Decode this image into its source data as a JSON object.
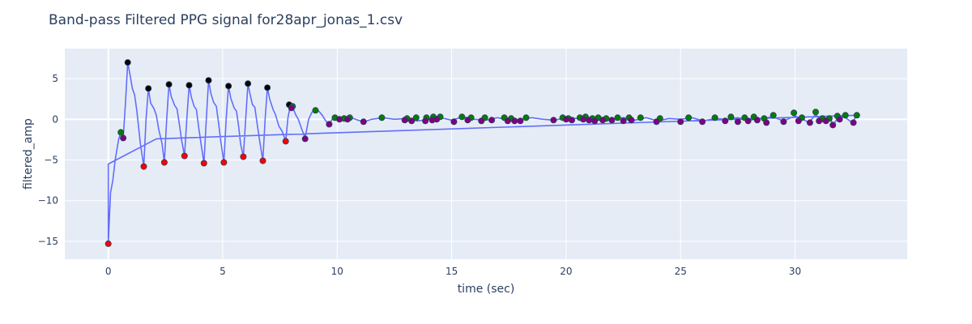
{
  "chart_data": {
    "type": "scatter",
    "title": "Band-pass Filtered PPG signal for28apr_jonas_1.csv",
    "xlabel": "time (sec)",
    "ylabel": "filtered_amp",
    "xlim": [
      -1.9,
      34.9
    ],
    "ylim": [
      -17.2,
      8.7
    ],
    "x_ticks": [
      0,
      5,
      10,
      15,
      20,
      25,
      30
    ],
    "y_ticks": [
      -15,
      -10,
      -5,
      0,
      5
    ],
    "grid": true,
    "colors": {
      "plot_bg": "#e5ecf6",
      "grid": "#ffffff",
      "line": "#636efa",
      "peaks_major": "#000000",
      "troughs_major": "#ff0000",
      "peaks_minor": "#008000",
      "troughs_minor": "#800080",
      "marker_edge": "#2a3f5f"
    },
    "series": [
      {
        "kind": "line",
        "points": [
          [
            0,
            -15.3
          ],
          [
            0.05,
            -12
          ],
          [
            0.1,
            -9
          ],
          [
            0.2,
            -7.5
          ],
          [
            0.3,
            -5
          ],
          [
            0.45,
            -2.5
          ],
          [
            0.55,
            -1.6
          ],
          [
            0.65,
            -2.3
          ],
          [
            0.75,
            2
          ],
          [
            0.85,
            7
          ],
          [
            0.95,
            5.5
          ],
          [
            1.05,
            3.8
          ],
          [
            1.15,
            3
          ],
          [
            1.25,
            1
          ],
          [
            1.4,
            -3
          ],
          [
            1.55,
            -5.8
          ],
          [
            1.65,
            0
          ],
          [
            1.75,
            3.8
          ],
          [
            1.85,
            2
          ],
          [
            2.0,
            1.3
          ],
          [
            2.1,
            0.5
          ],
          [
            2.2,
            -1.2
          ],
          [
            2.35,
            -3
          ],
          [
            2.45,
            -5.3
          ],
          [
            2.55,
            0
          ],
          [
            2.65,
            4.3
          ],
          [
            2.75,
            2.8
          ],
          [
            2.9,
            1.7
          ],
          [
            3.0,
            1.3
          ],
          [
            3.1,
            -0.5
          ],
          [
            3.2,
            -2.5
          ],
          [
            3.33,
            -4.5
          ],
          [
            3.43,
            0
          ],
          [
            3.53,
            4.2
          ],
          [
            3.63,
            2.7
          ],
          [
            3.75,
            1.6
          ],
          [
            3.85,
            1.2
          ],
          [
            3.95,
            -1
          ],
          [
            4.05,
            -3
          ],
          [
            4.18,
            -5.4
          ],
          [
            4.28,
            0
          ],
          [
            4.38,
            4.8
          ],
          [
            4.48,
            3.2
          ],
          [
            4.6,
            2.1
          ],
          [
            4.72,
            1.6
          ],
          [
            4.82,
            -0.5
          ],
          [
            4.92,
            -2.8
          ],
          [
            5.05,
            -5.3
          ],
          [
            5.15,
            0
          ],
          [
            5.25,
            4.1
          ],
          [
            5.35,
            2.6
          ],
          [
            5.5,
            1.4
          ],
          [
            5.6,
            1
          ],
          [
            5.7,
            -1
          ],
          [
            5.78,
            -3
          ],
          [
            5.9,
            -4.6
          ],
          [
            6.0,
            0
          ],
          [
            6.1,
            4.4
          ],
          [
            6.2,
            3
          ],
          [
            6.3,
            1.8
          ],
          [
            6.4,
            1.5
          ],
          [
            6.5,
            -0.5
          ],
          [
            6.62,
            -2.8
          ],
          [
            6.75,
            -5.1
          ],
          [
            6.85,
            0
          ],
          [
            6.95,
            3.9
          ],
          [
            7.05,
            2.5
          ],
          [
            7.2,
            1.2
          ],
          [
            7.3,
            0.6
          ],
          [
            7.45,
            -0.8
          ],
          [
            7.6,
            -1.5
          ],
          [
            7.75,
            -2.7
          ],
          [
            7.85,
            0.2
          ],
          [
            7.95,
            1.7
          ],
          [
            8.05,
            1.5
          ],
          [
            8.2,
            0.5
          ],
          [
            8.3,
            0
          ],
          [
            8.45,
            -1.2
          ],
          [
            8.6,
            -2.3
          ],
          [
            8.75,
            0
          ],
          [
            8.9,
            0.9
          ],
          [
            9.05,
            1.1
          ],
          [
            9.2,
            1
          ],
          [
            9.35,
            0.5
          ],
          [
            9.5,
            -0.2
          ],
          [
            9.65,
            -0.6
          ],
          [
            9.8,
            0.1
          ],
          [
            10.0,
            0.2
          ],
          [
            10.3,
            0.1
          ],
          [
            10.6,
            0.2
          ],
          [
            10.9,
            -0.1
          ],
          [
            11.2,
            -0.3
          ],
          [
            11.5,
            0
          ],
          [
            12.0,
            0.2
          ],
          [
            12.5,
            0
          ],
          [
            13.0,
            0.1
          ],
          [
            13.5,
            -0.2
          ],
          [
            14.0,
            0
          ],
          [
            14.5,
            0.2
          ],
          [
            15.0,
            -0.1
          ],
          [
            15.5,
            0.3
          ],
          [
            16.0,
            0
          ],
          [
            16.5,
            -0.1
          ],
          [
            17.0,
            0.2
          ],
          [
            17.5,
            -0.1
          ],
          [
            18.0,
            0
          ],
          [
            18.5,
            0.2
          ],
          [
            19.0,
            0
          ],
          [
            19.5,
            -0.1
          ],
          [
            20.0,
            0.2
          ],
          [
            20.5,
            0.1
          ],
          [
            21.0,
            -0.2
          ],
          [
            21.5,
            0.1
          ],
          [
            22.0,
            0
          ],
          [
            22.5,
            0.2
          ],
          [
            23.0,
            -0.1
          ],
          [
            23.5,
            0.2
          ],
          [
            24.0,
            -0.2
          ],
          [
            24.5,
            0.1
          ],
          [
            25.0,
            0
          ],
          [
            25.5,
            0.2
          ],
          [
            26.0,
            -0.2
          ],
          [
            26.5,
            0.1
          ],
          [
            27.0,
            0
          ],
          [
            27.5,
            0.2
          ],
          [
            28.0,
            -0.1
          ],
          [
            28.5,
            0.1
          ],
          [
            29.0,
            0.3
          ],
          [
            29.5,
            -0.2
          ],
          [
            30.0,
            0.4
          ],
          [
            30.3,
            0.1
          ],
          [
            30.6,
            -0.4
          ],
          [
            30.9,
            0.6
          ],
          [
            31.2,
            -0.3
          ],
          [
            31.5,
            0
          ],
          [
            31.7,
            -0.6
          ],
          [
            31.9,
            0.4
          ],
          [
            32.2,
            0.2
          ],
          [
            32.5,
            -0.4
          ],
          [
            32.7,
            0.5
          ],
          [
            32.7,
            0.5
          ],
          [
            2.1,
            -2.4
          ],
          [
            0,
            -5.5
          ],
          [
            0,
            -15.3
          ]
        ]
      },
      {
        "kind": "markers",
        "name_hint": "peaks_major",
        "color_key": "peaks_major",
        "points": [
          [
            0.85,
            7
          ],
          [
            1.75,
            3.8
          ],
          [
            2.65,
            4.3
          ],
          [
            3.53,
            4.2
          ],
          [
            4.38,
            4.8
          ],
          [
            5.25,
            4.1
          ],
          [
            6.1,
            4.4
          ],
          [
            6.95,
            3.9
          ],
          [
            7.9,
            1.8
          ]
        ]
      },
      {
        "kind": "markers",
        "name_hint": "troughs_major",
        "color_key": "troughs_major",
        "points": [
          [
            0,
            -15.3
          ],
          [
            1.55,
            -5.8
          ],
          [
            2.45,
            -5.3
          ],
          [
            3.33,
            -4.5
          ],
          [
            4.18,
            -5.4
          ],
          [
            5.05,
            -5.3
          ],
          [
            5.9,
            -4.6
          ],
          [
            6.75,
            -5.1
          ],
          [
            7.75,
            -2.7
          ]
        ]
      },
      {
        "kind": "markers",
        "name_hint": "peaks_minor",
        "color_key": "peaks_minor",
        "points": [
          [
            0.55,
            -1.6
          ],
          [
            8.05,
            1.6
          ],
          [
            9.05,
            1.1
          ],
          [
            9.9,
            0.2
          ],
          [
            10.3,
            0.1
          ],
          [
            10.55,
            0.2
          ],
          [
            11.95,
            0.2
          ],
          [
            13.05,
            0.1
          ],
          [
            13.45,
            0.2
          ],
          [
            13.9,
            0.2
          ],
          [
            14.2,
            0.3
          ],
          [
            14.5,
            0.3
          ],
          [
            15.45,
            0.3
          ],
          [
            15.85,
            0.2
          ],
          [
            16.45,
            0.2
          ],
          [
            17.3,
            0.2
          ],
          [
            17.6,
            0.1
          ],
          [
            18.25,
            0.2
          ],
          [
            19.85,
            0.2
          ],
          [
            20.1,
            0.1
          ],
          [
            20.6,
            0.2
          ],
          [
            20.85,
            0.3
          ],
          [
            21.15,
            0.1
          ],
          [
            21.4,
            0.2
          ],
          [
            21.75,
            0.1
          ],
          [
            22.25,
            0.2
          ],
          [
            22.75,
            0.2
          ],
          [
            23.25,
            0.2
          ],
          [
            24.1,
            0.1
          ],
          [
            25.35,
            0.2
          ],
          [
            26.5,
            0.2
          ],
          [
            27.2,
            0.3
          ],
          [
            27.8,
            0.2
          ],
          [
            28.2,
            0.3
          ],
          [
            28.65,
            0.1
          ],
          [
            29.05,
            0.5
          ],
          [
            29.95,
            0.8
          ],
          [
            30.3,
            0.2
          ],
          [
            30.9,
            0.9
          ],
          [
            31.2,
            0.1
          ],
          [
            31.5,
            0.1
          ],
          [
            31.85,
            0.4
          ],
          [
            32.2,
            0.5
          ],
          [
            32.7,
            0.5
          ]
        ]
      },
      {
        "kind": "markers",
        "name_hint": "troughs_minor",
        "color_key": "troughs_minor",
        "points": [
          [
            0.65,
            -2.3
          ],
          [
            8.0,
            1.4
          ],
          [
            8.6,
            -2.4
          ],
          [
            9.65,
            -0.6
          ],
          [
            10.1,
            0.0
          ],
          [
            10.45,
            0.0
          ],
          [
            11.15,
            -0.3
          ],
          [
            12.95,
            -0.1
          ],
          [
            13.25,
            -0.2
          ],
          [
            13.85,
            -0.2
          ],
          [
            14.15,
            -0.1
          ],
          [
            14.35,
            0.0
          ],
          [
            15.1,
            -0.3
          ],
          [
            15.7,
            -0.1
          ],
          [
            16.3,
            -0.2
          ],
          [
            16.75,
            -0.1
          ],
          [
            17.45,
            -0.2
          ],
          [
            17.75,
            -0.2
          ],
          [
            18.0,
            -0.2
          ],
          [
            19.45,
            -0.1
          ],
          [
            20.0,
            0.0
          ],
          [
            20.25,
            -0.1
          ],
          [
            20.75,
            0.0
          ],
          [
            21.0,
            -0.1
          ],
          [
            21.25,
            -0.2
          ],
          [
            21.6,
            -0.1
          ],
          [
            22.0,
            -0.1
          ],
          [
            22.5,
            -0.2
          ],
          [
            22.85,
            -0.1
          ],
          [
            23.95,
            -0.3
          ],
          [
            25.0,
            -0.3
          ],
          [
            25.95,
            -0.3
          ],
          [
            26.95,
            -0.2
          ],
          [
            27.5,
            -0.3
          ],
          [
            27.95,
            -0.2
          ],
          [
            28.35,
            -0.1
          ],
          [
            28.75,
            -0.4
          ],
          [
            29.5,
            -0.3
          ],
          [
            30.15,
            -0.2
          ],
          [
            30.65,
            -0.4
          ],
          [
            31.05,
            -0.2
          ],
          [
            31.35,
            -0.2
          ],
          [
            31.65,
            -0.7
          ],
          [
            31.95,
            0.0
          ],
          [
            32.55,
            -0.4
          ]
        ]
      }
    ]
  }
}
